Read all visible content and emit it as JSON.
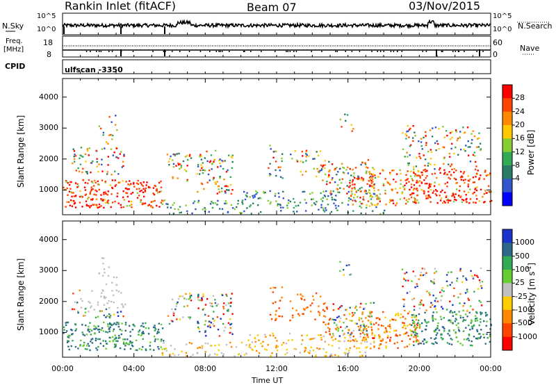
{
  "header": {
    "station": "Rankin Inlet (fitACF)",
    "beam": "Beam 07",
    "date": "03/Nov/2015"
  },
  "top_panel": {
    "left_label": "N.Sky",
    "right_label": "N.Search",
    "left_ticks": [
      "10^5",
      "10^0"
    ],
    "right_ticks": [
      "10^5",
      "10^0"
    ]
  },
  "freq_panel": {
    "left_label_1": "Freq.",
    "left_label_2": "[MHz]",
    "left_ticks": [
      "18",
      "8"
    ],
    "right_label": "Nave",
    "right_ticks": [
      "60",
      "0"
    ]
  },
  "cpid": {
    "label": "CPID",
    "value": "ulfscan -3350"
  },
  "chart_data": [
    {
      "type": "heatmap",
      "name": "power",
      "ylabel": "Slant Range [km]",
      "yticks": [
        1000,
        2000,
        3000,
        4000
      ],
      "ylim": [
        200,
        4600
      ],
      "xlim": [
        0,
        24
      ],
      "colorbar_label": "Power [dB]",
      "colorbar_ticks": [
        "28",
        "24",
        "20",
        "16",
        "12",
        "8",
        "4"
      ],
      "colorbar_colors": [
        "#ff0000",
        "#ff4400",
        "#ff8800",
        "#ffc800",
        "#88cc33",
        "#33aa55",
        "#2a7a66",
        "#3355cc",
        "#0000ff"
      ]
    },
    {
      "type": "heatmap",
      "name": "velocity",
      "ylabel": "Slant Range [km]",
      "yticks": [
        1000,
        2000,
        3000,
        4000
      ],
      "ylim": [
        200,
        4600
      ],
      "xlim": [
        0,
        24
      ],
      "colorbar_label": "Velocity [m s",
      "colorbar_label_sup": "-1",
      "colorbar_label_end": "]",
      "colorbar_ticks": [
        "1000",
        "500",
        "100",
        "25",
        "-25",
        "-100",
        "-500",
        "-1000"
      ],
      "colorbar_colors": [
        "#1a33cc",
        "#2a6a88",
        "#33aa55",
        "#66cc33",
        "#c0c0c0",
        "#ffcc00",
        "#ff8800",
        "#ff4400",
        "#ff0000"
      ]
    }
  ],
  "xaxis": {
    "label": "Time UT",
    "ticks": [
      "00:00",
      "04:00",
      "08:00",
      "12:00",
      "16:00",
      "20:00",
      "00:00"
    ]
  }
}
